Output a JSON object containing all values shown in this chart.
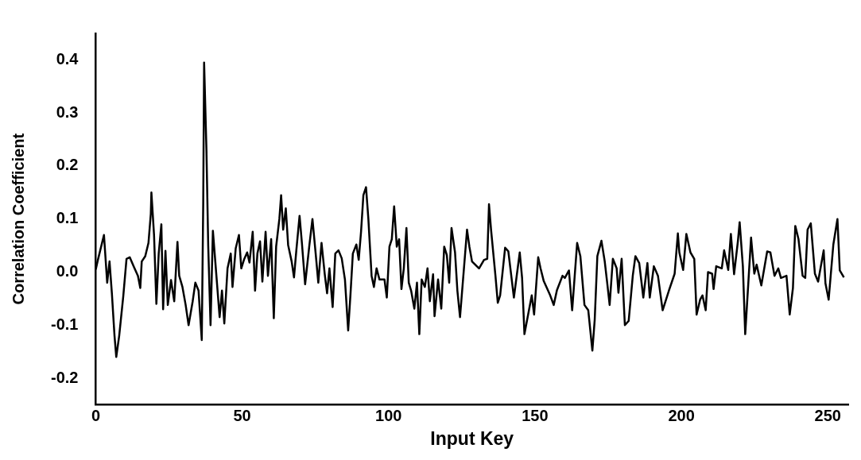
{
  "chart_data": {
    "type": "line",
    "xlabel": "Input Key",
    "ylabel": "Correlation Coefficient",
    "xlim": [
      0,
      257
    ],
    "xticks": [
      0,
      50,
      100,
      150,
      200,
      250
    ],
    "ylim": [
      -0.25,
      0.45
    ],
    "yticks": [
      -0.2,
      -0.1,
      {
        "value": 0,
        "label": "0.0"
      },
      0.1,
      0.2,
      0.3,
      0.4
    ],
    "grid": false,
    "legend": false,
    "marker": "none",
    "line_style": "solid",
    "series": [
      {
        "color": "#000000",
        "x": [
          0,
          0.6,
          2.8,
          3.9,
          4.7,
          5.5,
          6.4,
          7,
          8,
          9.4,
          10.5,
          11.6,
          13,
          14.4,
          15.2,
          15.7,
          16.9,
          18,
          18.8,
          19,
          19.9,
          20.7,
          21.5,
          22.4,
          23,
          23.8,
          24.6,
          25.7,
          26.8,
          27.9,
          28.5,
          29.6,
          30.7,
          31.7,
          33.1,
          34,
          35.1,
          36.2,
          36.7,
          37,
          37.8,
          38.4,
          39.2,
          40,
          41.2,
          42.3,
          43.1,
          43.9,
          45,
          46.1,
          46.7,
          47.8,
          48.9,
          49.7,
          50.6,
          51.7,
          52.5,
          53.6,
          54.4,
          55.2,
          56.1,
          56.9,
          58,
          58.8,
          59.9,
          60.8,
          61.6,
          62.7,
          63.3,
          64,
          64.9,
          65.7,
          66.9,
          67.7,
          68.5,
          69.6,
          70.4,
          71.5,
          72.9,
          74,
          75.1,
          76,
          77.1,
          78.2,
          79,
          79.8,
          80.9,
          81.8,
          82.9,
          84,
          85.1,
          86.2,
          87,
          87.8,
          89,
          89.8,
          90.6,
          91.4,
          92.3,
          93.1,
          94.2,
          95,
          95.9,
          96.9,
          98.6,
          99.4,
          100.3,
          101.1,
          101.9,
          102.8,
          103.6,
          104.4,
          105.2,
          106.1,
          106.9,
          107.7,
          108.8,
          109.7,
          110.5,
          111.3,
          112.4,
          113.3,
          114.1,
          115.2,
          115.7,
          116.9,
          118,
          119,
          119.9,
          120.7,
          121.5,
          122.7,
          123.5,
          124.4,
          126.8,
          127.6,
          128.5,
          130.9,
          132.6,
          133.7,
          134.3,
          135,
          136.5,
          137.3,
          138.1,
          139.8,
          140.9,
          142.8,
          144.8,
          145.6,
          146.4,
          147.8,
          148.9,
          149.7,
          151.1,
          151.9,
          153,
          155.2,
          156.4,
          157.5,
          159.4,
          160.2,
          161.6,
          162.7,
          164.4,
          165.5,
          166.9,
          168.2,
          169.6,
          170.4,
          171.3,
          172.7,
          173.8,
          174.6,
          175.5,
          176.6,
          177.9,
          178.5,
          179.6,
          180.7,
          182,
          183.4,
          184.3,
          185.6,
          187,
          188.4,
          189.2,
          190.6,
          192,
          193.6,
          195.8,
          197.7,
          198.8,
          199.3,
          200.6,
          201.7,
          203.1,
          204.4,
          205.2,
          206.4,
          207.2,
          208.3,
          209.1,
          210.5,
          211,
          211.9,
          213.8,
          214.6,
          216,
          216.9,
          218,
          219.3,
          219.9,
          221,
          221.8,
          222.9,
          223.8,
          224.9,
          225.7,
          227.3,
          229.3,
          230.4,
          231.8,
          233.1,
          234,
          235.9,
          237,
          238.1,
          238.9,
          240,
          241.4,
          242.3,
          243.1,
          244.2,
          245.6,
          246.7,
          248.6,
          249.2,
          250.3,
          251.9,
          253.3,
          254.1,
          255.5
        ],
        "values": [
          0.005,
          0.02,
          0.07,
          -0.02,
          0.02,
          -0.04,
          -0.12,
          -0.16,
          -0.12,
          -0.045,
          0.025,
          0.028,
          0.01,
          -0.007,
          -0.03,
          0.02,
          0.03,
          0.055,
          0.11,
          0.15,
          0.07,
          -0.06,
          0.035,
          0.09,
          -0.07,
          0.04,
          -0.062,
          -0.015,
          -0.055,
          0.057,
          -0.007,
          -0.028,
          -0.062,
          -0.1,
          -0.055,
          -0.02,
          -0.035,
          -0.128,
          0.13,
          0.395,
          0.23,
          0.05,
          -0.1,
          0.078,
          -0.007,
          -0.085,
          -0.035,
          -0.097,
          0.007,
          0.035,
          -0.028,
          0.045,
          0.07,
          0.007,
          0.023,
          0.037,
          0.018,
          0.076,
          -0.035,
          0.035,
          0.058,
          -0.018,
          0.076,
          -0.007,
          0.062,
          -0.087,
          0.048,
          0.1,
          0.145,
          0.08,
          0.12,
          0.051,
          0.02,
          -0.01,
          0.041,
          0.106,
          0.055,
          -0.023,
          0.048,
          0.1,
          0.035,
          -0.02,
          0.055,
          -0.004,
          -0.04,
          0.007,
          -0.066,
          0.035,
          0.041,
          0.026,
          -0.014,
          -0.11,
          -0.041,
          0.035,
          0.052,
          0.023,
          0.076,
          0.145,
          0.16,
          0.1,
          -0.007,
          -0.028,
          0.007,
          -0.014,
          -0.014,
          -0.048,
          0.048,
          0.062,
          0.124,
          0.048,
          0.062,
          -0.032,
          0.007,
          0.083,
          -0.02,
          -0.035,
          -0.069,
          -0.02,
          -0.117,
          -0.014,
          -0.028,
          0.007,
          -0.055,
          -0.004,
          -0.083,
          -0.014,
          -0.069,
          0.048,
          0.032,
          -0.02,
          0.083,
          0.037,
          -0.035,
          -0.085,
          0.08,
          0.048,
          0.02,
          0.007,
          0.023,
          0.025,
          0.128,
          0.08,
          -0.007,
          -0.058,
          -0.044,
          0.046,
          0.039,
          -0.048,
          0.037,
          -0.011,
          -0.117,
          -0.076,
          -0.044,
          -0.08,
          0.028,
          0.007,
          -0.017,
          -0.044,
          -0.062,
          -0.034,
          -0.007,
          -0.011,
          0.003,
          -0.072,
          0.055,
          0.03,
          -0.062,
          -0.072,
          -0.148,
          -0.09,
          0.03,
          0.059,
          0.021,
          -0.017,
          -0.062,
          0.025,
          0.007,
          -0.039,
          0.025,
          -0.1,
          -0.092,
          -0.007,
          0.03,
          0.017,
          -0.048,
          0.017,
          -0.048,
          0.011,
          -0.007,
          -0.072,
          -0.034,
          -0.003,
          0.073,
          0.037,
          0.004,
          0.072,
          0.037,
          0.025,
          -0.08,
          -0.052,
          -0.044,
          -0.072,
          0.0,
          -0.003,
          -0.032,
          0.011,
          0.007,
          0.041,
          0.004,
          0.072,
          -0.004,
          0.058,
          0.094,
          0.011,
          -0.117,
          -0.017,
          0.065,
          -0.003,
          0.014,
          -0.025,
          0.039,
          0.037,
          -0.007,
          0.007,
          -0.011,
          -0.007,
          -0.08,
          -0.03,
          0.087,
          0.062,
          -0.007,
          -0.011,
          0.08,
          0.092,
          -0.003,
          -0.018,
          0.041,
          -0.021,
          -0.052,
          0.052,
          0.1,
          0.003,
          -0.01
        ]
      }
    ]
  }
}
